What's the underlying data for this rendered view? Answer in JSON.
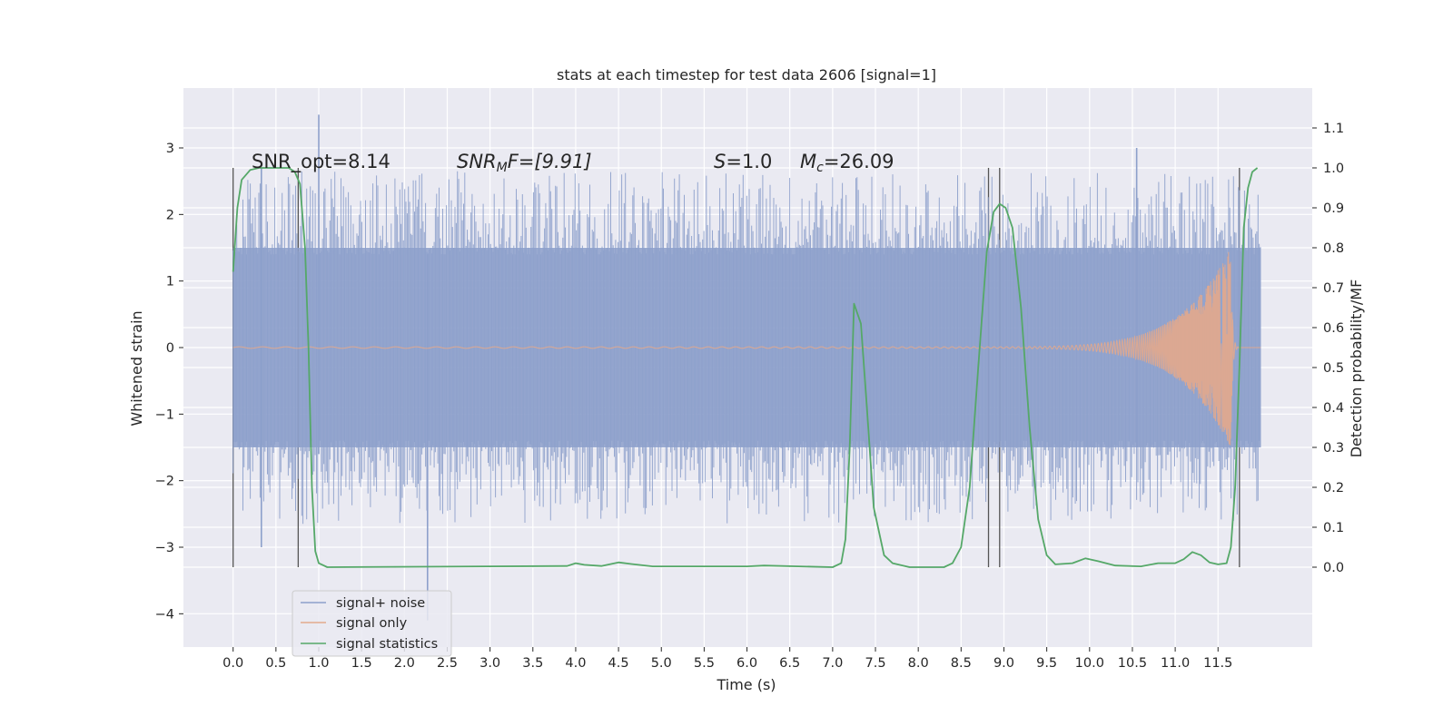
{
  "chart_data": {
    "type": "line",
    "title": "stats at each timestep for test data 2606 [signal=1]",
    "xlabel": "Time (s)",
    "ylabel_left": "Whitened strain",
    "ylabel_right": "Detection probability/MF",
    "xlim": [
      -0.58,
      12.6
    ],
    "ylim_left": [
      -4.5,
      3.9
    ],
    "ylim_right": [
      -0.2,
      1.2
    ],
    "x_ticks": [
      "0.0",
      "0.5",
      "1.0",
      "1.5",
      "2.0",
      "2.5",
      "3.0",
      "3.5",
      "4.0",
      "4.5",
      "5.0",
      "5.5",
      "6.0",
      "6.5",
      "7.0",
      "7.5",
      "8.0",
      "8.5",
      "9.0",
      "9.5",
      "10.0",
      "10.5",
      "11.0",
      "11.5"
    ],
    "y_ticks_left": [
      "−4",
      "−3",
      "−2",
      "−1",
      "0",
      "1",
      "2",
      "3"
    ],
    "y_ticks_right": [
      "0.0",
      "0.1",
      "0.2",
      "0.3",
      "0.4",
      "0.5",
      "0.6",
      "0.7",
      "0.8",
      "0.9",
      "1.0",
      "1.1"
    ],
    "grid": true,
    "legend_position": "lower-left",
    "annotations": {
      "snr_opt": "SNR_opt=8.14",
      "snr_mf_base": "SNR",
      "snr_mf_sub": "M",
      "snr_mf_rest": "F=[9.91]",
      "s_sym": "S",
      "s_val": "=1.0",
      "mc_sym": "M",
      "mc_sub": "c",
      "mc_val": "=26.09"
    },
    "vertical_markers_s": [
      0.0,
      0.76,
      8.82,
      8.95,
      11.75
    ],
    "series": [
      {
        "name": "signal+ noise",
        "color": "#8da0cb",
        "axis": "left",
        "x_range": [
          0.0,
          12.0
        ],
        "envelope": [
          -1.5,
          1.5
        ],
        "peak_max": 3.5,
        "peak_min": -4.1
      },
      {
        "name": "signal only",
        "color": "#e3a98c",
        "axis": "left",
        "x_range": [
          0.0,
          12.0
        ],
        "chirp_start_s": 7.6,
        "chirp_peak_s": 11.65,
        "chirp_peak_amplitude": 1.5
      },
      {
        "name": "signal statistics",
        "color": "#55a868",
        "axis": "right",
        "points": [
          [
            0.0,
            0.74
          ],
          [
            0.05,
            0.9
          ],
          [
            0.1,
            0.97
          ],
          [
            0.2,
            0.995
          ],
          [
            0.3,
            1.0
          ],
          [
            0.5,
            1.0
          ],
          [
            0.65,
            1.0
          ],
          [
            0.72,
            0.99
          ],
          [
            0.78,
            0.96
          ],
          [
            0.84,
            0.8
          ],
          [
            0.88,
            0.55
          ],
          [
            0.92,
            0.2
          ],
          [
            0.96,
            0.04
          ],
          [
            1.0,
            0.01
          ],
          [
            1.1,
            0.0
          ],
          [
            3.9,
            0.003
          ],
          [
            4.0,
            0.01
          ],
          [
            4.1,
            0.006
          ],
          [
            4.3,
            0.003
          ],
          [
            4.5,
            0.012
          ],
          [
            4.65,
            0.008
          ],
          [
            4.9,
            0.002
          ],
          [
            6.0,
            0.002
          ],
          [
            6.2,
            0.004
          ],
          [
            7.0,
            0.0
          ],
          [
            7.1,
            0.01
          ],
          [
            7.15,
            0.07
          ],
          [
            7.2,
            0.3
          ],
          [
            7.25,
            0.66
          ],
          [
            7.33,
            0.61
          ],
          [
            7.4,
            0.4
          ],
          [
            7.48,
            0.15
          ],
          [
            7.6,
            0.03
          ],
          [
            7.7,
            0.01
          ],
          [
            7.9,
            0.0
          ],
          [
            8.3,
            0.0
          ],
          [
            8.4,
            0.01
          ],
          [
            8.5,
            0.05
          ],
          [
            8.6,
            0.2
          ],
          [
            8.7,
            0.5
          ],
          [
            8.8,
            0.79
          ],
          [
            8.88,
            0.89
          ],
          [
            8.95,
            0.91
          ],
          [
            9.02,
            0.9
          ],
          [
            9.1,
            0.85
          ],
          [
            9.2,
            0.65
          ],
          [
            9.3,
            0.35
          ],
          [
            9.4,
            0.12
          ],
          [
            9.5,
            0.03
          ],
          [
            9.6,
            0.007
          ],
          [
            9.8,
            0.01
          ],
          [
            9.95,
            0.022
          ],
          [
            10.1,
            0.015
          ],
          [
            10.3,
            0.004
          ],
          [
            10.6,
            0.002
          ],
          [
            10.8,
            0.01
          ],
          [
            11.0,
            0.01
          ],
          [
            11.1,
            0.02
          ],
          [
            11.2,
            0.038
          ],
          [
            11.3,
            0.03
          ],
          [
            11.4,
            0.012
          ],
          [
            11.5,
            0.007
          ],
          [
            11.6,
            0.01
          ],
          [
            11.65,
            0.05
          ],
          [
            11.7,
            0.2
          ],
          [
            11.75,
            0.5
          ],
          [
            11.8,
            0.85
          ],
          [
            11.85,
            0.95
          ],
          [
            11.9,
            0.99
          ],
          [
            11.96,
            1.0
          ]
        ]
      }
    ]
  }
}
